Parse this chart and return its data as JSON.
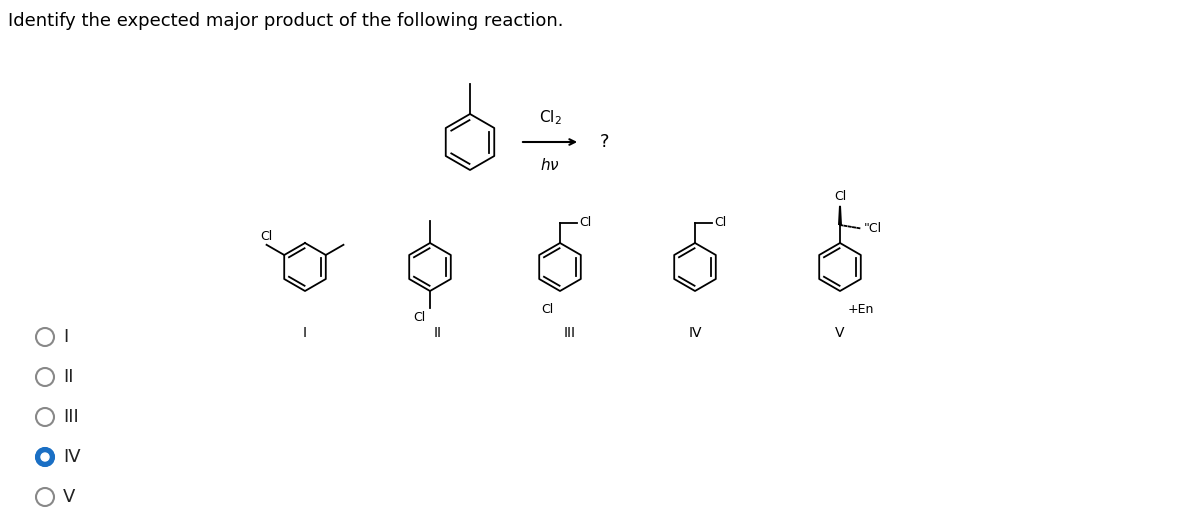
{
  "title": "Identify the expected major product of the following reaction.",
  "bg_color": "#ffffff",
  "radio_selected": 3,
  "radio_color_selected": "#1a6fc4",
  "radio_color_unselected": "#888888",
  "options": [
    "I",
    "II",
    "III",
    "IV",
    "V"
  ],
  "option_fontsize": 13,
  "structure_labels": [
    "I",
    "II",
    "III",
    "IV",
    "V"
  ],
  "structure_fontsize": 10
}
